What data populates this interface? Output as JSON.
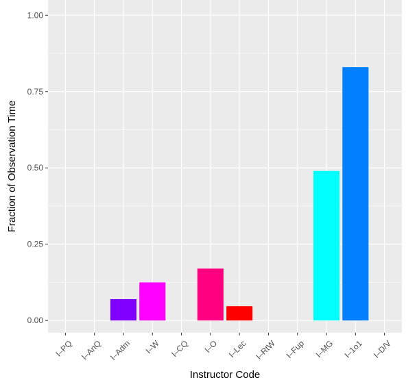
{
  "chart_data": {
    "type": "bar",
    "xlabel": "Instructor Code",
    "ylabel": "Fraction of Observation Time",
    "categories": [
      "I–PQ",
      "I–AnQ",
      "I–Adm",
      "I–W",
      "I–CQ",
      "I–O",
      "I–Lec",
      "I–RtW",
      "I–Fup",
      "I–MG",
      "I–1o1",
      "I–D/V"
    ],
    "values": [
      0,
      0,
      0.07,
      0.125,
      0,
      0.17,
      0.047,
      0,
      0,
      0.49,
      0.83,
      0
    ],
    "colors": [
      "#7f00ff",
      "#7f00ff",
      "#7f00ff",
      "#ff00ff",
      "#ff0080",
      "#ff0080",
      "#ff0000",
      "#ff0000",
      "#00ffff",
      "#00ffff",
      "#0080ff",
      "#0080ff"
    ],
    "yticks": [
      0.0,
      0.25,
      0.5,
      0.75,
      1.0
    ],
    "ytick_labels": [
      "0.00",
      "0.25",
      "0.50",
      "0.75",
      "1.00"
    ],
    "ylim": [
      -0.04,
      1.05
    ],
    "grid": true,
    "panel_background": "#ebebeb",
    "grid_color": "#ffffff"
  }
}
